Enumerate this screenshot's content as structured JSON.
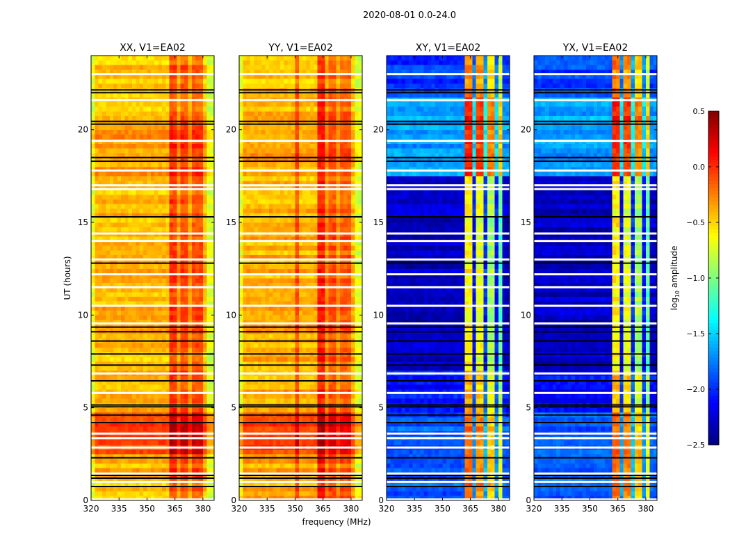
{
  "chart_data": {
    "type": "heatmap",
    "suptitle": "2020-08-01 0.0-24.0",
    "xlabel": "frequency (MHz)",
    "ylabel": "UT (hours)",
    "xlim": [
      320,
      386
    ],
    "ylim": [
      0,
      24
    ],
    "xticks": [
      320,
      335,
      350,
      365,
      380
    ],
    "yticks": [
      0,
      5,
      10,
      15,
      20
    ],
    "colorbar": {
      "label_main": "log",
      "label_sub": "10",
      "label_rest": " amplitude",
      "range": [
        -2.5,
        0.5
      ],
      "ticks": [
        "0.5",
        "0.0",
        "−0.5",
        "−1.0",
        "−1.5",
        "−2.0",
        "−2.5"
      ],
      "colormap": "jet"
    },
    "flagged_white_hours": [
      0.05,
      1.0,
      1.45,
      2.85,
      3.35,
      3.6,
      5.8,
      6.85,
      9.55,
      10.5,
      11.5,
      12.2,
      13.0,
      14.0,
      14.4,
      16.8,
      17.0,
      17.8,
      19.4,
      21.6,
      23.0
    ],
    "flagged_black_hours": [
      0.75,
      1.2,
      1.35,
      2.3,
      4.2,
      4.6,
      5.05,
      5.15,
      6.45,
      7.3,
      7.9,
      8.6,
      9.1,
      9.35,
      12.8,
      15.3,
      18.3,
      18.5,
      20.3,
      20.45,
      22.0,
      22.15
    ],
    "panels": [
      {
        "title": "XX, V1=EA02",
        "time_segments": [
          {
            "start": 0,
            "end": 2.4,
            "level": -0.42
          },
          {
            "start": 2.4,
            "end": 4.7,
            "level": -0.1
          },
          {
            "start": 4.7,
            "end": 17.5,
            "level": -0.42
          },
          {
            "start": 17.5,
            "end": 20.6,
            "level": -0.35
          },
          {
            "start": 20.6,
            "end": 24,
            "level": -0.45
          }
        ],
        "freq_offsets": [
          {
            "start": 320,
            "end": 323,
            "offset": -0.25
          },
          {
            "start": 362,
            "end": 366,
            "offset": 0.38
          },
          {
            "start": 366,
            "end": 367.5,
            "offset": 0.1
          },
          {
            "start": 367.5,
            "end": 372.5,
            "offset": 0.33
          },
          {
            "start": 372.5,
            "end": 374,
            "offset": 0.08
          },
          {
            "start": 374,
            "end": 380,
            "offset": 0.3
          },
          {
            "start": 383,
            "end": 386,
            "offset": -0.3
          }
        ]
      },
      {
        "title": "YY, V1=EA02",
        "time_segments": [
          {
            "start": 0,
            "end": 2.4,
            "level": -0.4
          },
          {
            "start": 2.4,
            "end": 4.7,
            "level": -0.08
          },
          {
            "start": 4.7,
            "end": 17.5,
            "level": -0.4
          },
          {
            "start": 17.5,
            "end": 20.6,
            "level": -0.35
          },
          {
            "start": 20.6,
            "end": 24,
            "level": -0.45
          }
        ],
        "freq_offsets": [
          {
            "start": 320,
            "end": 323,
            "offset": -0.25
          },
          {
            "start": 351,
            "end": 352,
            "offset": 0.3
          },
          {
            "start": 362,
            "end": 366,
            "offset": 0.45
          },
          {
            "start": 366,
            "end": 367.5,
            "offset": 0.1
          },
          {
            "start": 367.5,
            "end": 372.5,
            "offset": 0.3
          },
          {
            "start": 372.5,
            "end": 374,
            "offset": 0.08
          },
          {
            "start": 374,
            "end": 380,
            "offset": 0.25
          },
          {
            "start": 383,
            "end": 386,
            "offset": -0.3
          }
        ]
      },
      {
        "title": "XY, V1=EA02",
        "time_segments": [
          {
            "start": 0,
            "end": 4.7,
            "level": -1.85
          },
          {
            "start": 4.7,
            "end": 7.0,
            "level": -2.1
          },
          {
            "start": 7.0,
            "end": 17.5,
            "level": -2.3
          },
          {
            "start": 17.5,
            "end": 21.8,
            "level": -1.65
          },
          {
            "start": 21.8,
            "end": 24,
            "level": -1.95
          }
        ],
        "freq_offsets": [
          {
            "start": 363,
            "end": 366.5,
            "offset": 1.7
          },
          {
            "start": 366.5,
            "end": 367.5,
            "offset": 0.2
          },
          {
            "start": 367.5,
            "end": 372.5,
            "offset": 1.6
          },
          {
            "start": 372.5,
            "end": 373.5,
            "offset": 0.3
          },
          {
            "start": 373.5,
            "end": 378.5,
            "offset": 1.4
          },
          {
            "start": 378.5,
            "end": 379.5,
            "offset": 0.2
          },
          {
            "start": 379.5,
            "end": 381.5,
            "offset": 1.2
          }
        ]
      },
      {
        "title": "YX, V1=EA02",
        "time_segments": [
          {
            "start": 0,
            "end": 4.7,
            "level": -1.85
          },
          {
            "start": 4.7,
            "end": 7.0,
            "level": -2.1
          },
          {
            "start": 7.0,
            "end": 17.5,
            "level": -2.3
          },
          {
            "start": 17.5,
            "end": 21.8,
            "level": -1.65
          },
          {
            "start": 21.8,
            "end": 24,
            "level": -1.95
          }
        ],
        "freq_offsets": [
          {
            "start": 363,
            "end": 366.5,
            "offset": 1.7
          },
          {
            "start": 366.5,
            "end": 367.5,
            "offset": 0.2
          },
          {
            "start": 367.5,
            "end": 372.5,
            "offset": 1.6
          },
          {
            "start": 372.5,
            "end": 373.5,
            "offset": 0.3
          },
          {
            "start": 373.5,
            "end": 378.5,
            "offset": 1.4
          },
          {
            "start": 378.5,
            "end": 379.5,
            "offset": 0.2
          },
          {
            "start": 379.5,
            "end": 381.5,
            "offset": 1.2
          }
        ]
      }
    ]
  }
}
